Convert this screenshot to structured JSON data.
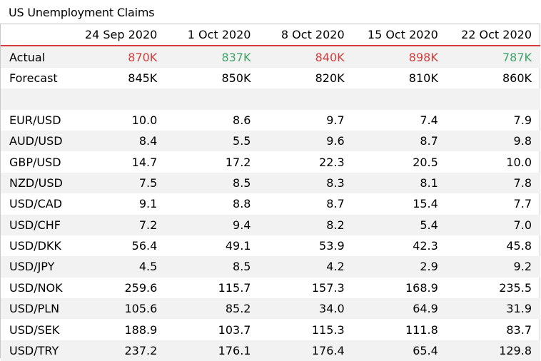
{
  "title": "US Unemployment Claims",
  "columns": [
    "24 Sep 2020",
    "1 Oct 2020",
    "8 Oct 2020",
    "15 Oct 2020",
    "22 Oct 2020"
  ],
  "actual": {
    "label": "Actual",
    "values": [
      "870K",
      "837K",
      "840K",
      "898K",
      "787K"
    ],
    "value_colors": [
      "red",
      "green",
      "red",
      "red",
      "green"
    ]
  },
  "forecast": {
    "label": "Forecast",
    "values": [
      "845K",
      "850K",
      "820K",
      "810K",
      "860K"
    ]
  },
  "pairs": [
    {
      "label": "EUR/USD",
      "values": [
        "10.0",
        "8.6",
        "9.7",
        "7.4",
        "7.9"
      ]
    },
    {
      "label": "AUD/USD",
      "values": [
        "8.4",
        "5.5",
        "9.6",
        "8.7",
        "9.8"
      ]
    },
    {
      "label": "GBP/USD",
      "values": [
        "14.7",
        "17.2",
        "22.3",
        "20.5",
        "10.0"
      ]
    },
    {
      "label": "NZD/USD",
      "values": [
        "7.5",
        "8.5",
        "8.3",
        "8.1",
        "7.8"
      ]
    },
    {
      "label": "USD/CAD",
      "values": [
        "9.1",
        "8.8",
        "8.7",
        "15.4",
        "7.7"
      ]
    },
    {
      "label": "USD/CHF",
      "values": [
        "7.2",
        "9.4",
        "8.2",
        "5.4",
        "7.0"
      ]
    },
    {
      "label": "USD/DKK",
      "values": [
        "56.4",
        "49.1",
        "53.9",
        "42.3",
        "45.8"
      ]
    },
    {
      "label": "USD/JPY",
      "values": [
        "4.5",
        "8.5",
        "4.2",
        "2.9",
        "9.2"
      ]
    },
    {
      "label": "USD/NOK",
      "values": [
        "259.6",
        "115.7",
        "157.3",
        "168.9",
        "235.5"
      ]
    },
    {
      "label": "USD/PLN",
      "values": [
        "105.6",
        "85.2",
        "34.0",
        "64.9",
        "31.9"
      ]
    },
    {
      "label": "USD/SEK",
      "values": [
        "188.9",
        "103.7",
        "115.3",
        "111.8",
        "83.7"
      ]
    },
    {
      "label": "USD/TRY",
      "values": [
        "237.2",
        "176.1",
        "176.4",
        "65.4",
        "129.8"
      ]
    }
  ],
  "colors": {
    "red": "#d03d3d",
    "green": "#3fa36a",
    "header_rule": "#d63a3a",
    "stripe": "#f2f2f2"
  }
}
